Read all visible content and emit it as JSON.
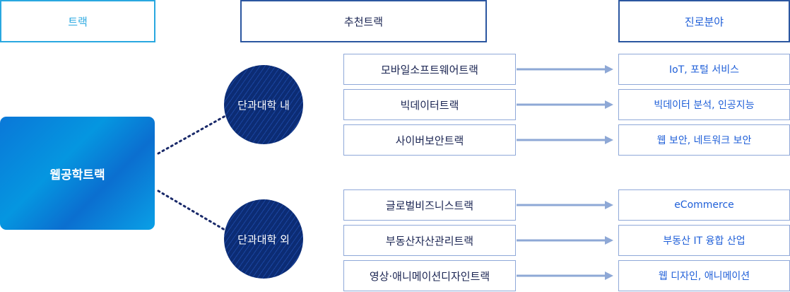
{
  "headers": {
    "track": "트랙",
    "recommended": "추천트랙",
    "career": "진로분야"
  },
  "main_track": "웹공학트랙",
  "groups": [
    {
      "label": "단과대학 내",
      "rows": [
        {
          "track": "모바일소프트웨어트랙",
          "career": "IoT, 포털 서비스"
        },
        {
          "track": "빅데이터트랙",
          "career": "빅데이터 분석, 인공지능"
        },
        {
          "track": "사이버보안트랙",
          "career": "웹 보안, 네트워크 보안"
        }
      ]
    },
    {
      "label": "단과대학 외",
      "rows": [
        {
          "track": "글로벌비즈니스트랙",
          "career": "eCommerce"
        },
        {
          "track": "부동산자산관리트랙",
          "career": "부동산 IT 융합 산업"
        },
        {
          "track": "영상·애니메이션디자인트랙",
          "career": "웹 디자인, 애니메이션"
        }
      ]
    }
  ],
  "colors": {
    "header_track": "#29a8e0",
    "header_recommended": "#2b56a0",
    "header_career": "#2b56a0",
    "circle": "#0c2c74",
    "arrow": "#8ea8d6",
    "career_text": "#1f5fd8"
  }
}
